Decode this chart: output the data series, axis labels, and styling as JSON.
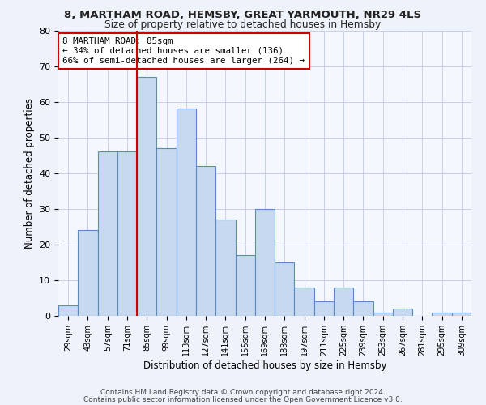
{
  "title1": "8, MARTHAM ROAD, HEMSBY, GREAT YARMOUTH, NR29 4LS",
  "title2": "Size of property relative to detached houses in Hemsby",
  "xlabel": "Distribution of detached houses by size in Hemsby",
  "ylabel": "Number of detached properties",
  "categories": [
    "29sqm",
    "43sqm",
    "57sqm",
    "71sqm",
    "85sqm",
    "99sqm",
    "113sqm",
    "127sqm",
    "141sqm",
    "155sqm",
    "169sqm",
    "183sqm",
    "197sqm",
    "211sqm",
    "225sqm",
    "239sqm",
    "253sqm",
    "267sqm",
    "281sqm",
    "295sqm",
    "309sqm"
  ],
  "values": [
    3,
    24,
    46,
    46,
    67,
    47,
    58,
    42,
    27,
    17,
    30,
    15,
    8,
    4,
    8,
    4,
    1,
    2,
    0,
    1,
    1
  ],
  "bar_color": "#c6d9f1",
  "bar_edge_color": "#5a8ac6",
  "ref_line_index": 4,
  "ref_line_label": "8 MARTHAM ROAD: 85sqm",
  "annotation_line1": "← 34% of detached houses are smaller (136)",
  "annotation_line2": "66% of semi-detached houses are larger (264) →",
  "annotation_box_color": "#ffffff",
  "annotation_box_edge": "#cc0000",
  "ref_line_color": "#cc0000",
  "ylim": [
    0,
    80
  ],
  "yticks": [
    0,
    10,
    20,
    30,
    40,
    50,
    60,
    70,
    80
  ],
  "footer1": "Contains HM Land Registry data © Crown copyright and database right 2024.",
  "footer2": "Contains public sector information licensed under the Open Government Licence v3.0.",
  "background_color": "#eef2fb",
  "plot_bg_color": "#f4f7fe",
  "grid_color": "#c8d0e8"
}
